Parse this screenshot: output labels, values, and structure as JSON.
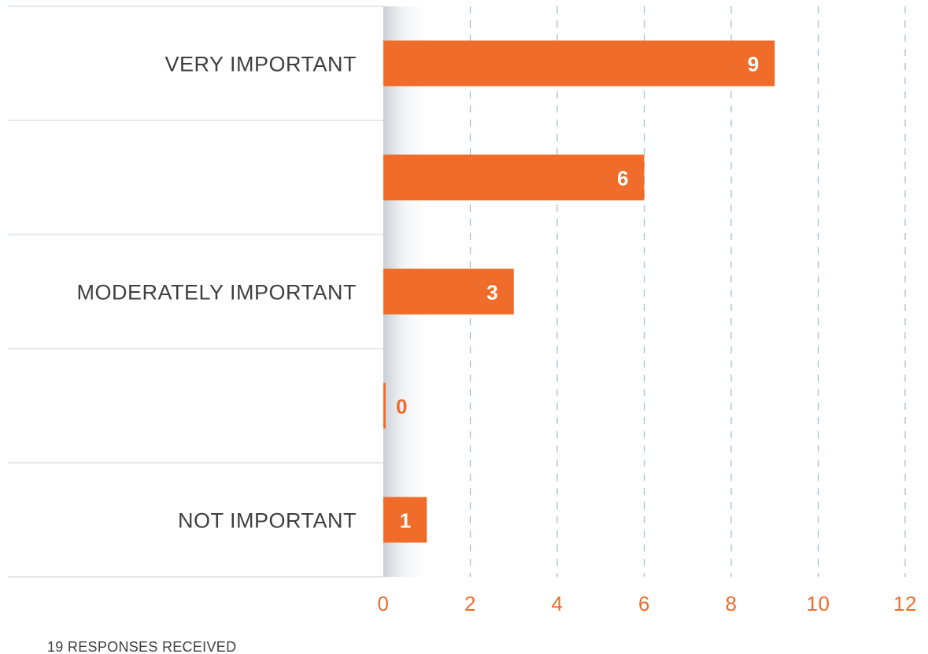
{
  "chart_data": {
    "type": "bar",
    "orientation": "horizontal",
    "categories": [
      "VERY IMPORTANT",
      "",
      "MODERATELY IMPORTANT",
      "",
      "NOT IMPORTANT"
    ],
    "values": [
      9,
      6,
      3,
      0,
      1
    ],
    "value_labels": [
      "9",
      "6",
      "3",
      "0",
      "1"
    ],
    "xlim": [
      0,
      12
    ],
    "x_ticks": [
      0,
      2,
      4,
      6,
      8,
      10,
      12
    ],
    "x_tick_labels": [
      "0",
      "2",
      "4",
      "6",
      "8",
      "10",
      "12"
    ],
    "grid": "vertical dashed",
    "legend": "none",
    "title": "",
    "xlabel": "",
    "ylabel": ""
  },
  "footnote": "19 RESPONSES RECEIVED",
  "colors": {
    "bar": "#ef6c2a",
    "tick_label": "#ef6c2a",
    "value_inside": "#ffffff",
    "value_outside": "#ef6c2a",
    "category_label": "#3f3f3f",
    "gridline": "#a9b9c2",
    "row_divider": "#e3e8ec"
  }
}
